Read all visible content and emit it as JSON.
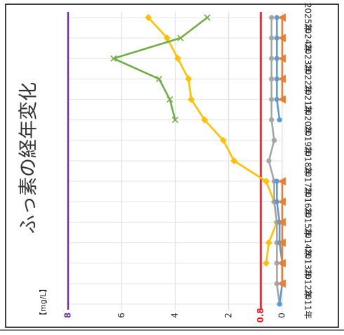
{
  "chart_data": {
    "type": "line",
    "orientation": "rotated-90",
    "title": "ふっ素の経年変化",
    "unit_label": "【mg/L】",
    "categories": [
      "2011年",
      "2012年",
      "2013年",
      "2014年",
      "2015年",
      "2016年",
      "2017年",
      "2018年",
      "2019年",
      "2020年",
      "2021年",
      "2022年",
      "2023年",
      "2024年",
      "2025年"
    ],
    "ylim": [
      0,
      8
    ],
    "y_ticks": [
      {
        "value": 0,
        "label": "0",
        "color": "#222222"
      },
      {
        "value": 0.8,
        "label": "0.8",
        "color": "#e8161b"
      },
      {
        "value": 2,
        "label": "2",
        "color": "#222222"
      },
      {
        "value": 4,
        "label": "4",
        "color": "#222222"
      },
      {
        "value": 6,
        "label": "6",
        "color": "#222222"
      },
      {
        "value": 8,
        "label": "8",
        "color": "#7030a0"
      }
    ],
    "reference_lines": [
      {
        "value": 0.8,
        "color": "#e8161b"
      },
      {
        "value": 8,
        "color": "#7030a0"
      }
    ],
    "grid": true,
    "legend": "none",
    "series": [
      {
        "color": "#ffc000",
        "marker": "diamond",
        "values": [
          null,
          null,
          0.6,
          0.5,
          0.2,
          0.3,
          0.6,
          1.8,
          2.2,
          2.9,
          3.4,
          3.5,
          3.9,
          4.3,
          5.0
        ]
      },
      {
        "color": "#70ad47",
        "marker": "x",
        "values": [
          null,
          null,
          null,
          null,
          null,
          null,
          null,
          null,
          null,
          4.0,
          4.2,
          4.6,
          6.3,
          3.8,
          2.8
        ]
      },
      {
        "color": "#a5a5a5",
        "marker": "circle",
        "values": [
          0.1,
          0.2,
          0.2,
          0.2,
          0.2,
          0.3,
          0.3,
          0.5,
          0.3,
          0.4,
          0.4,
          0.4,
          0.4,
          0.4,
          0.4
        ]
      },
      {
        "color": "#5b9bd5",
        "marker": "circle",
        "values": [
          0.1,
          0.0,
          0.0,
          0.1,
          0.1,
          0.2,
          0.2,
          null,
          null,
          0.1,
          0.2,
          0.2,
          0.2,
          0.2,
          0.2
        ]
      },
      {
        "color": "#ed7d31",
        "marker": "triangle",
        "values": [
          null,
          0.0,
          0.0,
          0.0,
          0.0,
          0.0,
          0.0,
          null,
          null,
          null,
          0.0,
          0.0,
          0.0,
          0.0,
          0.0
        ]
      }
    ]
  }
}
